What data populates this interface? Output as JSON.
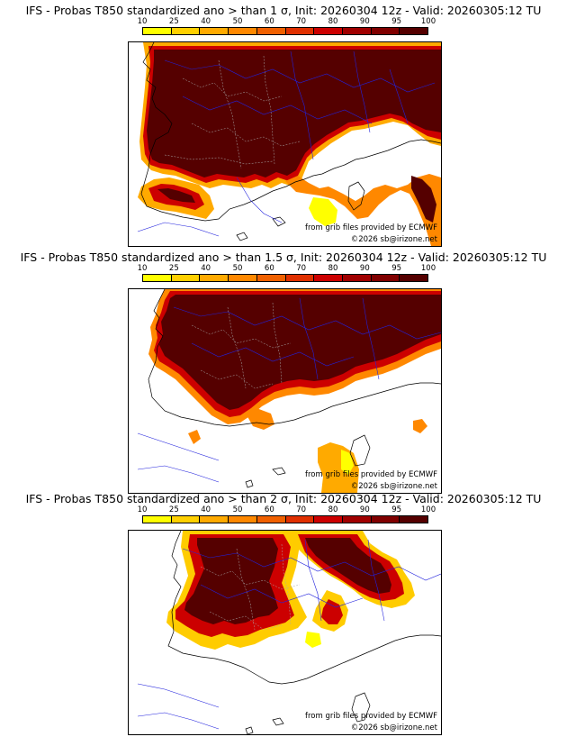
{
  "colorbar": {
    "labels": [
      "10",
      "25",
      "40",
      "50",
      "60",
      "70",
      "80",
      "90",
      "95",
      "100"
    ],
    "colors": [
      "#ffff00",
      "#ffd000",
      "#ffaa00",
      "#ff8800",
      "#f06000",
      "#e03000",
      "#cc0000",
      "#a00000",
      "#800000",
      "#550000"
    ]
  },
  "panels": [
    {
      "title": "IFS - Probas T850  standardized ano > than 1 σ, Init: 20260304 12z - Valid: 20260305:12 TU",
      "credit": "from grib files provided by ECMWF",
      "copyright": "©2026 sb@irizone.net"
    },
    {
      "title": "IFS - Probas T850  standardized ano > than 1.5 σ, Init: 20260304 12z - Valid: 20260305:12 TU",
      "credit": "from grib files provided by ECMWF",
      "copyright": "©2026 sb@irizone.net"
    },
    {
      "title": "IFS - Probas T850  standardized ano > than 2 σ, Init: 20260304 12z - Valid: 20260305:12 TU",
      "credit": "from grib files provided by ECMWF",
      "copyright": "©2026 sb@irizone.net"
    }
  ]
}
